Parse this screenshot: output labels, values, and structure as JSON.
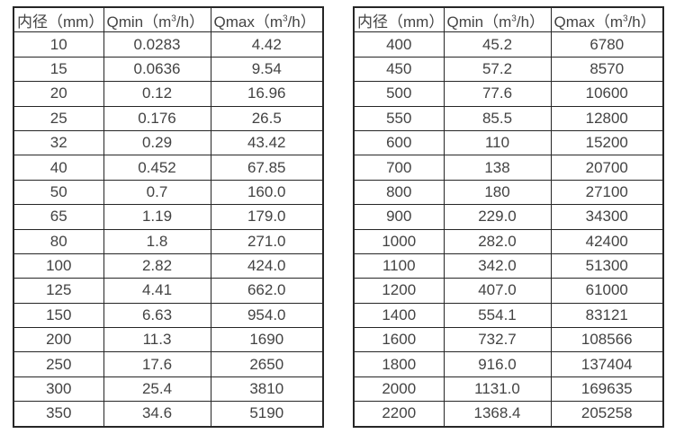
{
  "headers": {
    "diameter": "内径（mm）",
    "qmin_prefix": "Qmin（m",
    "qmax_prefix": "Qmax（m",
    "superscript": "3",
    "unit_suffix": "/h）"
  },
  "colors": {
    "background": "#ffffff",
    "border": "#262626",
    "text": "#434343"
  },
  "tables": [
    {
      "name": "small-diameters",
      "rows": [
        [
          "10",
          "0.0283",
          "4.42"
        ],
        [
          "15",
          "0.0636",
          "9.54"
        ],
        [
          "20",
          "0.12",
          "16.96"
        ],
        [
          "25",
          "0.176",
          "26.5"
        ],
        [
          "32",
          "0.29",
          "43.42"
        ],
        [
          "40",
          "0.452",
          "67.85"
        ],
        [
          "50",
          "0.7",
          "160.0"
        ],
        [
          "65",
          "1.19",
          "179.0"
        ],
        [
          "80",
          "1.8",
          "271.0"
        ],
        [
          "100",
          "2.82",
          "424.0"
        ],
        [
          "125",
          "4.41",
          "662.0"
        ],
        [
          "150",
          "6.63",
          "954.0"
        ],
        [
          "200",
          "11.3",
          "1690"
        ],
        [
          "250",
          "17.6",
          "2650"
        ],
        [
          "300",
          "25.4",
          "3810"
        ],
        [
          "350",
          "34.6",
          "5190"
        ]
      ]
    },
    {
      "name": "large-diameters",
      "rows": [
        [
          "400",
          "45.2",
          "6780"
        ],
        [
          "450",
          "57.2",
          "8570"
        ],
        [
          "500",
          "77.6",
          "10600"
        ],
        [
          "550",
          "85.5",
          "12800"
        ],
        [
          "600",
          "110",
          "15200"
        ],
        [
          "700",
          "138",
          "20700"
        ],
        [
          "800",
          "180",
          "27100"
        ],
        [
          "900",
          "229.0",
          "34300"
        ],
        [
          "1000",
          "282.0",
          "42400"
        ],
        [
          "1100",
          "342.0",
          "51300"
        ],
        [
          "1200",
          "407.0",
          "61000"
        ],
        [
          "1400",
          "554.1",
          "83121"
        ],
        [
          "1600",
          "732.7",
          "108566"
        ],
        [
          "1800",
          "916.0",
          "137404"
        ],
        [
          "2000",
          "1131.0",
          "169635"
        ],
        [
          "2200",
          "1368.4",
          "205258"
        ]
      ]
    }
  ]
}
